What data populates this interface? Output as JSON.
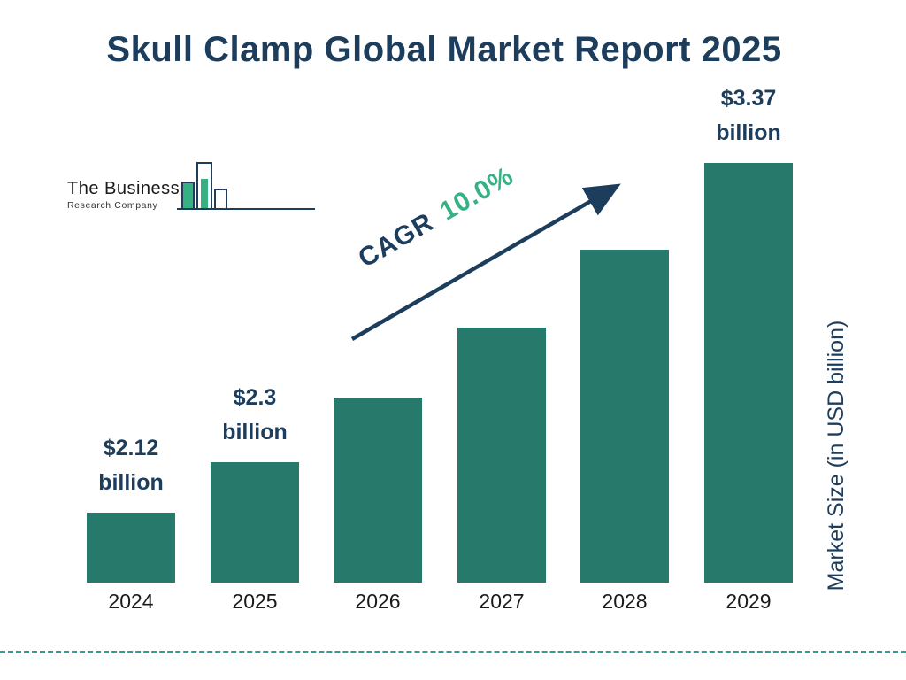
{
  "title": "Skull Clamp Global Market Report 2025",
  "logo": {
    "line1": "The Business",
    "line2": "Research Company",
    "icon": "bar-chart-logo-icon"
  },
  "colors": {
    "bar": "#26796b",
    "navy": "#1d3d5d",
    "green_accent": "#35b184",
    "footer_dash": "#2aa093"
  },
  "chart_data": {
    "type": "bar",
    "title": "Skull Clamp Global Market Report 2025",
    "categories": [
      "2024",
      "2025",
      "2026",
      "2027",
      "2028",
      "2029"
    ],
    "values": [
      2.12,
      2.3,
      2.53,
      2.78,
      3.06,
      3.37
    ],
    "unit": "USD billion",
    "xlabel": "",
    "ylabel": "Market Size (in USD billion)",
    "ylim": [
      0,
      3.5
    ],
    "grid": false,
    "legend": "none",
    "bar_color": "#26796b",
    "data_labels": [
      {
        "index": 0,
        "line1": "$2.12",
        "line2": "billion"
      },
      {
        "index": 1,
        "line1": "$2.3",
        "line2": "billion"
      },
      {
        "index": 5,
        "line1": "$3.37",
        "line2": "billion"
      }
    ],
    "annotation": {
      "label": "CAGR",
      "value": "10.0%"
    }
  }
}
